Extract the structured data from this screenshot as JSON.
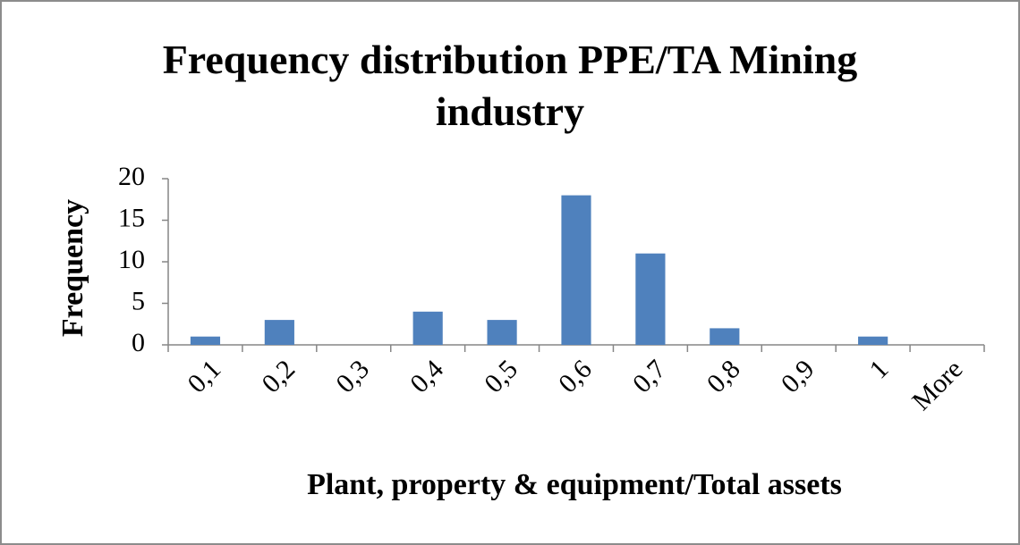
{
  "chart_data": {
    "type": "bar",
    "title": "Frequency distribution PPE/TA Mining industry",
    "x_label": "Plant, property & equipment/Total assets",
    "y_label": "Frequency",
    "categories": [
      "0,1",
      "0,2",
      "0,3",
      "0,4",
      "0,5",
      "0,6",
      "0,7",
      "0,8",
      "0,9",
      "1",
      "More"
    ],
    "values": [
      1,
      3,
      0,
      4,
      3,
      18,
      11,
      2,
      0,
      1,
      0
    ],
    "color": "#4f81bd",
    "ylim": [
      0,
      20
    ],
    "yticks": [
      0,
      5,
      10,
      15,
      20
    ],
    "grid": false
  }
}
